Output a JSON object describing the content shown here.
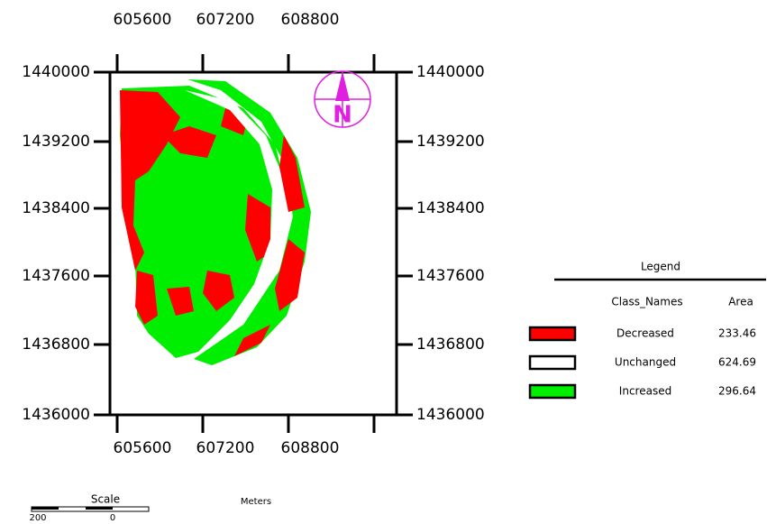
{
  "map": {
    "x_ticks": [
      "605600",
      "607200",
      "608800"
    ],
    "y_ticks": [
      "1440000",
      "1439200",
      "1438400",
      "1437600",
      "1436800",
      "1436000"
    ],
    "north_arrow": "N",
    "legend": {
      "title": "Legend",
      "headers": [
        "Class_Names",
        "Area"
      ],
      "items": [
        {
          "name": "Decreased",
          "area": "233.46",
          "color": "#ff0000"
        },
        {
          "name": "Unchanged",
          "area": "624.69",
          "color": "#ffffff"
        },
        {
          "name": "Increased",
          "area": "296.64",
          "color": "#00ee00"
        }
      ]
    },
    "scale": {
      "title": "Scale",
      "labels": [
        "200",
        "0"
      ],
      "unit": "Meters"
    }
  }
}
